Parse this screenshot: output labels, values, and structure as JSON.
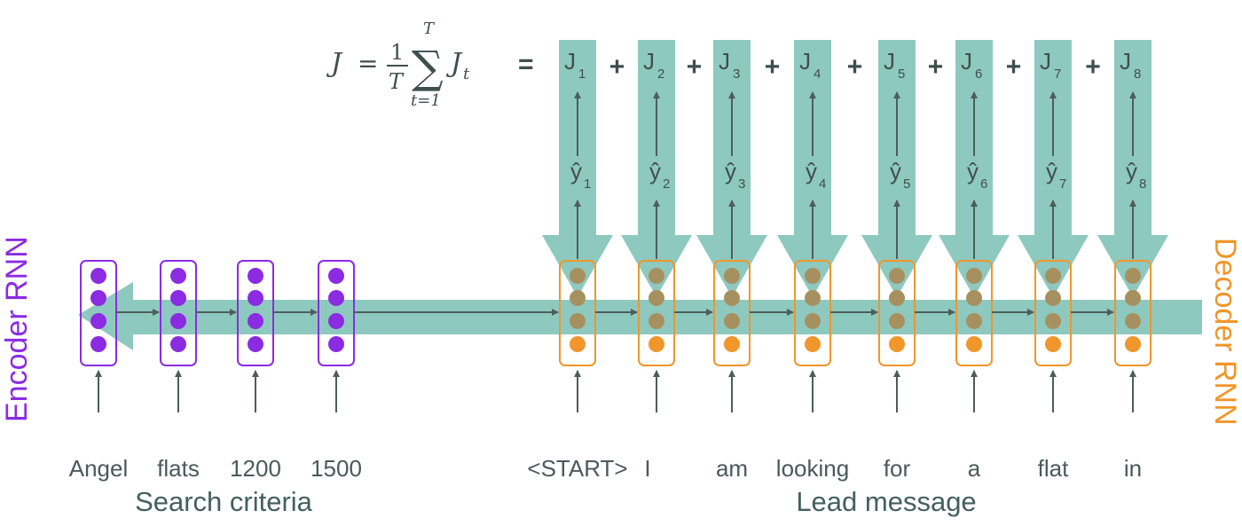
{
  "colors": {
    "teal": "#8ec9c0",
    "arrow": "#4d5e5a",
    "encoder": "#8b2be2",
    "decoder": "#f0962a",
    "text": "#4a5a58"
  },
  "loss_formula": {
    "lhs": "J",
    "eq": "=",
    "frac_num": "1",
    "frac_den": "T",
    "sum_upper": "T",
    "sum_lower": "t=1",
    "term": "J",
    "term_sub": "t",
    "equals_sign": "="
  },
  "encoder": {
    "side_label": "Encoder RNN",
    "inputs": [
      "Angel",
      "flats",
      "1200",
      "1500"
    ],
    "caption": "Search criteria"
  },
  "decoder": {
    "side_label": "Decoder RNN",
    "inputs": [
      "<START>",
      "I",
      "am",
      "looking",
      "for",
      "a",
      "flat",
      "in"
    ],
    "caption": "Lead message",
    "outputs": [
      {
        "yhat": "ŷ",
        "sub": "1",
        "j": "J",
        "jsub": "1"
      },
      {
        "yhat": "ŷ",
        "sub": "2",
        "j": "J",
        "jsub": "2"
      },
      {
        "yhat": "ŷ",
        "sub": "3",
        "j": "J",
        "jsub": "3"
      },
      {
        "yhat": "ŷ",
        "sub": "4",
        "j": "J",
        "jsub": "4"
      },
      {
        "yhat": "ŷ",
        "sub": "5",
        "j": "J",
        "jsub": "5"
      },
      {
        "yhat": "ŷ",
        "sub": "6",
        "j": "J",
        "jsub": "6"
      },
      {
        "yhat": "ŷ",
        "sub": "7",
        "j": "J",
        "jsub": "7"
      },
      {
        "yhat": "ŷ",
        "sub": "8",
        "j": "J",
        "jsub": "8"
      }
    ],
    "plus_sign": "+"
  }
}
